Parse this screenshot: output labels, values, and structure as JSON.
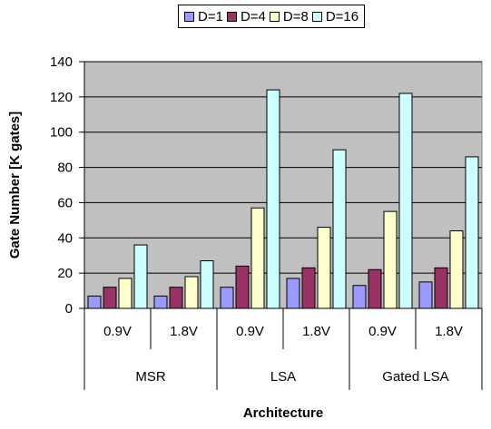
{
  "chart_data": {
    "type": "bar",
    "xlabel": "Architecture",
    "ylabel": "Gate Number [K gates]",
    "ylim": [
      0,
      140
    ],
    "yticks": [
      0,
      20,
      40,
      60,
      80,
      100,
      120,
      140
    ],
    "grid": true,
    "plot_background": "#c0c0c0",
    "legend_position": "top-center",
    "groups": [
      "MSR",
      "LSA",
      "Gated LSA"
    ],
    "categories": [
      "0.9V",
      "1.8V",
      "0.9V",
      "1.8V",
      "0.9V",
      "1.8V"
    ],
    "series": [
      {
        "name": "D=1",
        "color": "#9999ff",
        "values": [
          7,
          7,
          12,
          17,
          13,
          15
        ]
      },
      {
        "name": "D=4",
        "color": "#993366",
        "values": [
          12,
          12,
          24,
          23,
          22,
          23
        ]
      },
      {
        "name": "D=8",
        "color": "#ffffcc",
        "values": [
          17,
          18,
          57,
          46,
          55,
          44
        ]
      },
      {
        "name": "D=16",
        "color": "#ccffff",
        "values": [
          36,
          27,
          124,
          90,
          122,
          86
        ]
      }
    ]
  }
}
